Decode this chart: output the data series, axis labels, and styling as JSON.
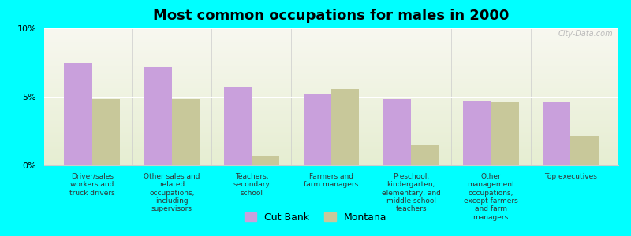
{
  "title": "Most common occupations for males in 2000",
  "categories": [
    "Driver/sales\nworkers and\ntruck drivers",
    "Other sales and\nrelated\noccupations,\nincluding\nsupervisors",
    "Teachers,\nsecondary\nschool",
    "Farmers and\nfarm managers",
    "Preschool,\nkindergarten,\nelementary, and\nmiddle school\nteachers",
    "Other\nmanagement\noccupations,\nexcept farmers\nand farm\nmanagers",
    "Top executives"
  ],
  "cut_bank_values": [
    7.5,
    7.2,
    5.7,
    5.2,
    4.8,
    4.7,
    4.6
  ],
  "montana_values": [
    4.8,
    4.8,
    0.7,
    5.6,
    1.5,
    4.6,
    2.1
  ],
  "cut_bank_color": "#c9a0dc",
  "montana_color": "#c8c89a",
  "background_color": "#00ffff",
  "ylim": [
    0,
    10
  ],
  "yticks": [
    0,
    5,
    10
  ],
  "ytick_labels": [
    "0%",
    "5%",
    "10%"
  ],
  "legend_labels": [
    "Cut Bank",
    "Montana"
  ],
  "title_fontsize": 13,
  "label_fontsize": 6.5,
  "watermark": "City-Data.com"
}
